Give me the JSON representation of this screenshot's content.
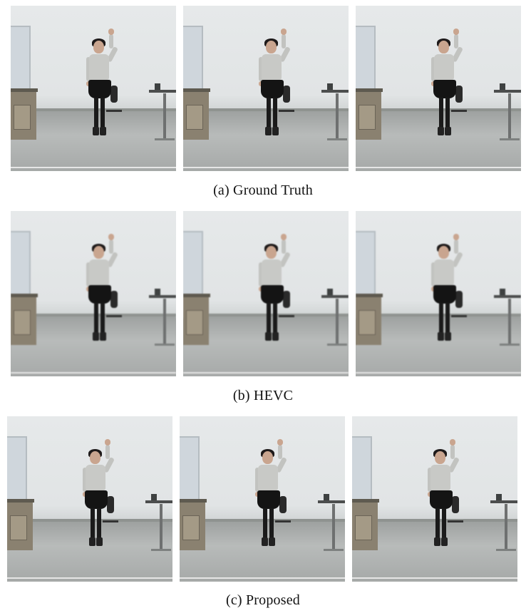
{
  "figure": {
    "rows": [
      {
        "caption": "(a) Ground Truth",
        "frames": [
          {
            "name": "ground-truth-frame-1"
          },
          {
            "name": "ground-truth-frame-2"
          },
          {
            "name": "ground-truth-frame-3"
          }
        ]
      },
      {
        "caption": "(b) HEVC",
        "frames": [
          {
            "name": "hevc-frame-1"
          },
          {
            "name": "hevc-frame-2"
          },
          {
            "name": "hevc-frame-3"
          }
        ]
      },
      {
        "caption": "(c) Proposed",
        "frames": [
          {
            "name": "proposed-frame-1"
          },
          {
            "name": "proposed-frame-2"
          },
          {
            "name": "proposed-frame-3"
          }
        ]
      }
    ]
  }
}
